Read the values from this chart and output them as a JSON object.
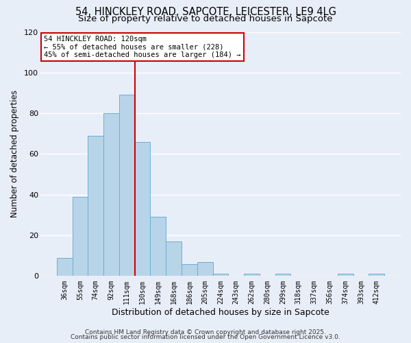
{
  "title": "54, HINCKLEY ROAD, SAPCOTE, LEICESTER, LE9 4LG",
  "subtitle": "Size of property relative to detached houses in Sapcote",
  "xlabel": "Distribution of detached houses by size in Sapcote",
  "ylabel": "Number of detached properties",
  "bar_labels": [
    "36sqm",
    "55sqm",
    "74sqm",
    "92sqm",
    "111sqm",
    "130sqm",
    "149sqm",
    "168sqm",
    "186sqm",
    "205sqm",
    "224sqm",
    "243sqm",
    "262sqm",
    "280sqm",
    "299sqm",
    "318sqm",
    "337sqm",
    "356sqm",
    "374sqm",
    "393sqm",
    "412sqm"
  ],
  "bar_values": [
    9,
    39,
    69,
    80,
    89,
    66,
    29,
    17,
    6,
    7,
    1,
    0,
    1,
    0,
    1,
    0,
    0,
    0,
    1,
    0,
    1
  ],
  "bar_color": "#b8d4e8",
  "bar_edge_color": "#6aaed6",
  "background_color": "#e8eef8",
  "grid_color": "#ffffff",
  "vline_color": "#cc0000",
  "annotation_title": "54 HINCKLEY ROAD: 120sqm",
  "annotation_line1": "← 55% of detached houses are smaller (228)",
  "annotation_line2": "45% of semi-detached houses are larger (184) →",
  "annotation_box_color": "#ffffff",
  "annotation_box_edge": "#cc0000",
  "ylim": [
    0,
    120
  ],
  "yticks": [
    0,
    20,
    40,
    60,
    80,
    100,
    120
  ],
  "footer1": "Contains HM Land Registry data © Crown copyright and database right 2025.",
  "footer2": "Contains public sector information licensed under the Open Government Licence v3.0.",
  "title_fontsize": 10.5,
  "subtitle_fontsize": 9.5,
  "footer_fontsize": 6.5
}
